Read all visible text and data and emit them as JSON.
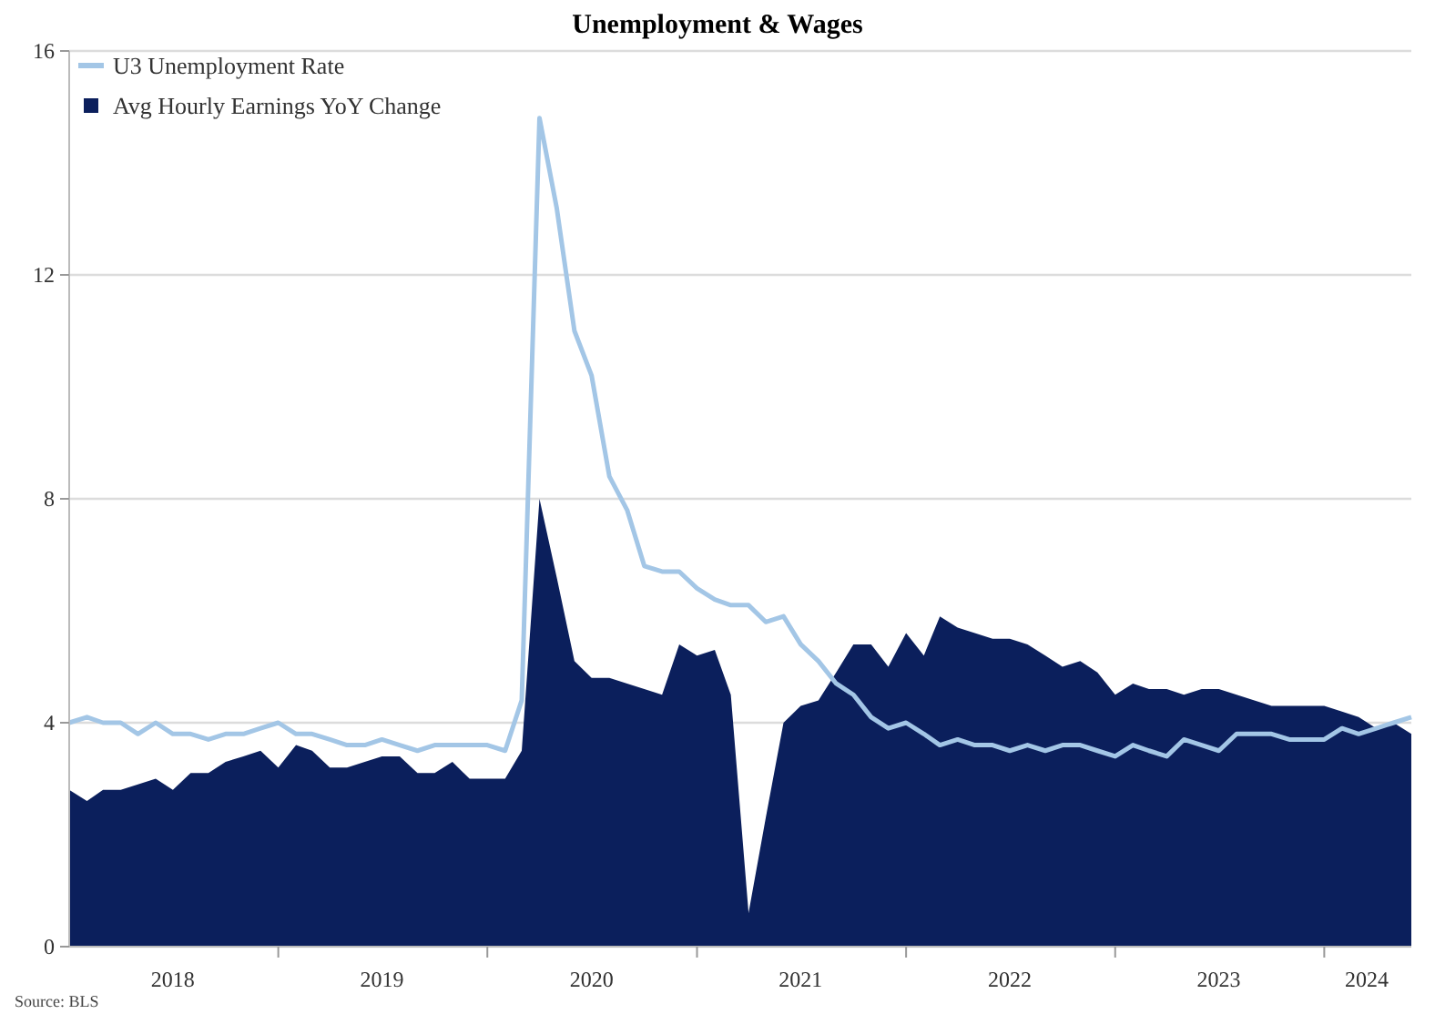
{
  "chart_data": {
    "type": "line",
    "title": "Unemployment & Wages",
    "annotations": [
      "Source: BLS"
    ],
    "x": [
      "2018-01",
      "2018-02",
      "2018-03",
      "2018-04",
      "2018-05",
      "2018-06",
      "2018-07",
      "2018-08",
      "2018-09",
      "2018-10",
      "2018-11",
      "2018-12",
      "2019-01",
      "2019-02",
      "2019-03",
      "2019-04",
      "2019-05",
      "2019-06",
      "2019-07",
      "2019-08",
      "2019-09",
      "2019-10",
      "2019-11",
      "2019-12",
      "2020-01",
      "2020-02",
      "2020-03",
      "2020-04",
      "2020-05",
      "2020-06",
      "2020-07",
      "2020-08",
      "2020-09",
      "2020-10",
      "2020-11",
      "2020-12",
      "2021-01",
      "2021-02",
      "2021-03",
      "2021-04",
      "2021-05",
      "2021-06",
      "2021-07",
      "2021-08",
      "2021-09",
      "2021-10",
      "2021-11",
      "2021-12",
      "2022-01",
      "2022-02",
      "2022-03",
      "2022-04",
      "2022-05",
      "2022-06",
      "2022-07",
      "2022-08",
      "2022-09",
      "2022-10",
      "2022-11",
      "2022-12",
      "2023-01",
      "2023-02",
      "2023-03",
      "2023-04",
      "2023-05",
      "2023-06",
      "2023-07",
      "2023-08",
      "2023-09",
      "2023-10",
      "2023-11",
      "2023-12",
      "2024-01",
      "2024-02",
      "2024-03",
      "2024-04",
      "2024-05",
      "2024-06"
    ],
    "series": [
      {
        "name": "Avg Hourly Earnings YoY Change",
        "type": "area",
        "color": "#0b1f5c",
        "values": [
          2.8,
          2.6,
          2.8,
          2.8,
          2.9,
          3.0,
          2.8,
          3.1,
          3.1,
          3.3,
          3.4,
          3.5,
          3.2,
          3.6,
          3.5,
          3.2,
          3.2,
          3.3,
          3.4,
          3.4,
          3.1,
          3.1,
          3.3,
          3.0,
          3.0,
          3.0,
          3.5,
          8.0,
          6.6,
          5.1,
          4.8,
          4.8,
          4.7,
          4.6,
          4.5,
          5.4,
          5.2,
          5.3,
          4.5,
          0.6,
          2.3,
          4.0,
          4.3,
          4.4,
          4.9,
          5.4,
          5.4,
          5.0,
          5.6,
          5.2,
          5.9,
          5.7,
          5.6,
          5.5,
          5.5,
          5.4,
          5.2,
          5.0,
          5.1,
          4.9,
          4.5,
          4.7,
          4.6,
          4.6,
          4.5,
          4.6,
          4.6,
          4.5,
          4.4,
          4.3,
          4.3,
          4.3,
          4.3,
          4.2,
          4.1,
          3.9,
          4.0,
          3.8
        ]
      },
      {
        "name": "U3 Unemployment Rate",
        "color": "#a3c6e6",
        "values": [
          4.0,
          4.1,
          4.0,
          4.0,
          3.8,
          4.0,
          3.8,
          3.8,
          3.7,
          3.8,
          3.8,
          3.9,
          4.0,
          3.8,
          3.8,
          3.7,
          3.6,
          3.6,
          3.7,
          3.6,
          3.5,
          3.6,
          3.6,
          3.6,
          3.6,
          3.5,
          4.4,
          14.8,
          13.2,
          11.0,
          10.2,
          8.4,
          7.8,
          6.8,
          6.7,
          6.7,
          6.4,
          6.2,
          6.1,
          6.1,
          5.8,
          5.9,
          5.4,
          5.1,
          4.7,
          4.5,
          4.1,
          3.9,
          4.0,
          3.8,
          3.6,
          3.7,
          3.6,
          3.6,
          3.5,
          3.6,
          3.5,
          3.6,
          3.6,
          3.5,
          3.4,
          3.6,
          3.5,
          3.4,
          3.7,
          3.6,
          3.5,
          3.8,
          3.8,
          3.8,
          3.7,
          3.7,
          3.7,
          3.9,
          3.8,
          3.9,
          4.0,
          4.1
        ]
      }
    ],
    "xlim": [
      "2018-01",
      "2024-06"
    ],
    "xticks": [
      {
        "value": "2018-07",
        "label": "2018"
      },
      {
        "value": "2019-07",
        "label": "2019"
      },
      {
        "value": "2020-07",
        "label": "2020"
      },
      {
        "value": "2021-07",
        "label": "2021"
      },
      {
        "value": "2022-07",
        "label": "2022"
      },
      {
        "value": "2023-07",
        "label": "2023"
      },
      {
        "value": "2024-03-15",
        "label": "2024"
      },
      {
        "value": "2019-01",
        "label": null
      },
      {
        "value": "2020-01",
        "label": null
      },
      {
        "value": "2021-01",
        "label": null
      },
      {
        "value": "2022-01",
        "label": null
      },
      {
        "value": "2023-01",
        "label": null
      },
      {
        "value": "2024-01",
        "label": null
      }
    ],
    "ylim": [
      0,
      16
    ],
    "yticks": [
      0,
      4,
      8,
      12,
      16
    ],
    "grid": "y",
    "legend": "top left",
    "line_style": "solid",
    "marker": "none"
  }
}
